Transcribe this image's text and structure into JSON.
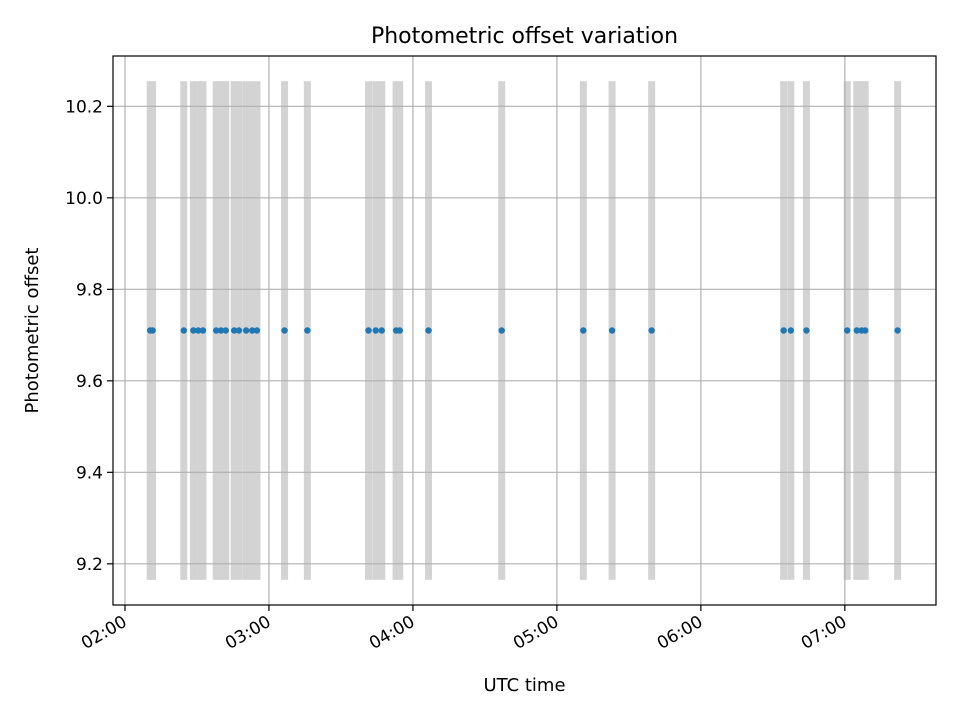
{
  "chart_data": {
    "type": "scatter",
    "title": "Photometric offset variation",
    "xlabel": "UTC time",
    "ylabel": "Photometric offset",
    "x_tick_labels": [
      "02:00",
      "03:00",
      "04:00",
      "05:00",
      "06:00",
      "07:00"
    ],
    "x_tick_values": [
      "02:00",
      "03:00",
      "04:00",
      "05:00",
      "06:00",
      "07:00"
    ],
    "xlim": [
      "01:55",
      "07:38"
    ],
    "y_tick_labels": [
      "9.2",
      "9.4",
      "9.6",
      "9.8",
      "10.0",
      "10.2"
    ],
    "y_ticks": [
      9.2,
      9.4,
      9.6,
      9.8,
      10.0,
      10.2
    ],
    "ylim": [
      9.11,
      10.31
    ],
    "grid": true,
    "colors": {
      "points": "#1f77b4",
      "bands": "#d3d3d3",
      "grid": "#b0b0b0"
    },
    "bands_ylim": [
      9.165,
      10.255
    ],
    "series": [
      {
        "values": [
          9.71,
          9.71,
          9.71,
          9.71,
          9.71,
          9.71,
          9.71,
          9.71,
          9.71,
          9.71,
          9.71,
          9.71,
          9.71,
          9.71,
          9.71,
          9.71,
          9.71,
          9.71,
          9.71,
          9.71,
          9.71,
          9.71,
          9.71,
          9.71,
          9.71,
          9.71,
          9.71,
          9.71,
          9.71,
          9.71,
          9.71,
          9.71,
          9.71,
          9.71
        ],
        "x": [
          "02:10:30",
          "02:11:30",
          "02:24:30",
          "02:28:30",
          "02:30:30",
          "02:32:30",
          "02:38:00",
          "02:40:00",
          "02:42:00",
          "02:45:30",
          "02:47:30",
          "02:50:30",
          "02:53:00",
          "02:55:00",
          "03:06:30",
          "03:16:00",
          "03:41:30",
          "03:44:30",
          "03:47:00",
          "03:53:00",
          "03:54:30",
          "04:06:30",
          "04:37:00",
          "05:11:00",
          "05:23:00",
          "05:39:30",
          "06:34:30",
          "06:37:30",
          "06:44:00",
          "07:01:00",
          "07:05:00",
          "07:07:00",
          "07:08:30",
          "07:22:00"
        ]
      }
    ]
  }
}
